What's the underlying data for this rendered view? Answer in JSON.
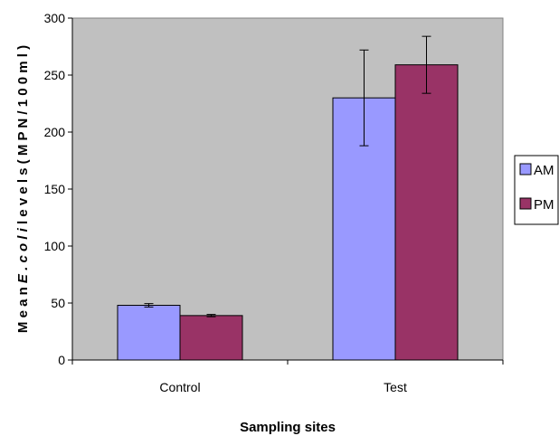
{
  "chart_data": {
    "type": "bar",
    "categories": [
      "Control",
      "Test"
    ],
    "series": [
      {
        "name": "AM",
        "values": [
          48,
          230
        ],
        "error": [
          1.5,
          42
        ],
        "color": "#9999ff"
      },
      {
        "name": "PM",
        "values": [
          39,
          259
        ],
        "error": [
          1,
          25
        ],
        "color": "#993366"
      }
    ],
    "ylim": [
      0,
      300
    ],
    "yticks": [
      0,
      50,
      100,
      150,
      200,
      250,
      300
    ],
    "ylabel": {
      "prefix": "M e a n",
      "italic": "E . c o l i",
      "suffix": "l e v e l s  ( M P N / 1 0 0 m l )"
    },
    "xlabel": "Sampling sites",
    "plot_background": "#c0c0c0",
    "legend_position": "right",
    "grid": false
  }
}
